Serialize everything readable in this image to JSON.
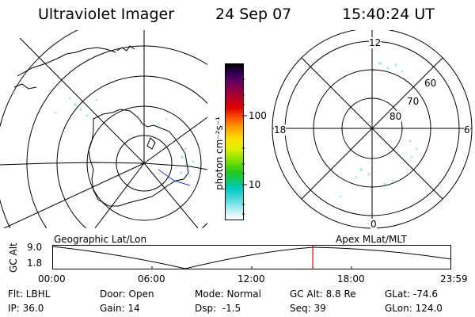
{
  "header": {
    "title": "Ultraviolet Imager",
    "date": "24 Sep 07",
    "time": "15:40:24 UT"
  },
  "colorbar": {
    "unit_label": "photon cm⁻²s⁻¹",
    "ticks": [
      "100",
      "10"
    ]
  },
  "maps": {
    "left_caption": "Geographic Lat/Lon",
    "right_caption": "Apex MLat/MLT",
    "mlt_labels": {
      "top": "12",
      "left": "18",
      "right": "6",
      "bottom": "0"
    },
    "lat_labels": [
      "60",
      "70",
      "80"
    ]
  },
  "altitude_plot": {
    "ylabel": "GC Alt",
    "ymax": "9.0",
    "ymin": "1.8",
    "x_ticks": [
      "00:00",
      "06:00",
      "12:00",
      "18:00",
      "23:59"
    ],
    "current_time_fraction": 0.653
  },
  "status": {
    "flt": "Flt: LBHL",
    "ip": "IP: 36.0",
    "door": "Door: Open",
    "gain": "Gain: 14",
    "mode": "Mode: Normal",
    "dsp": "Dsp:  -1.5",
    "gcalt": "GC Alt: 8.8 Re",
    "seq": "Seq: 39",
    "glat": "GLat: -74.6",
    "glon": "GLon: 124.0"
  },
  "colors": {
    "marker": "#e00000",
    "aurora": "#9fe4ec"
  }
}
